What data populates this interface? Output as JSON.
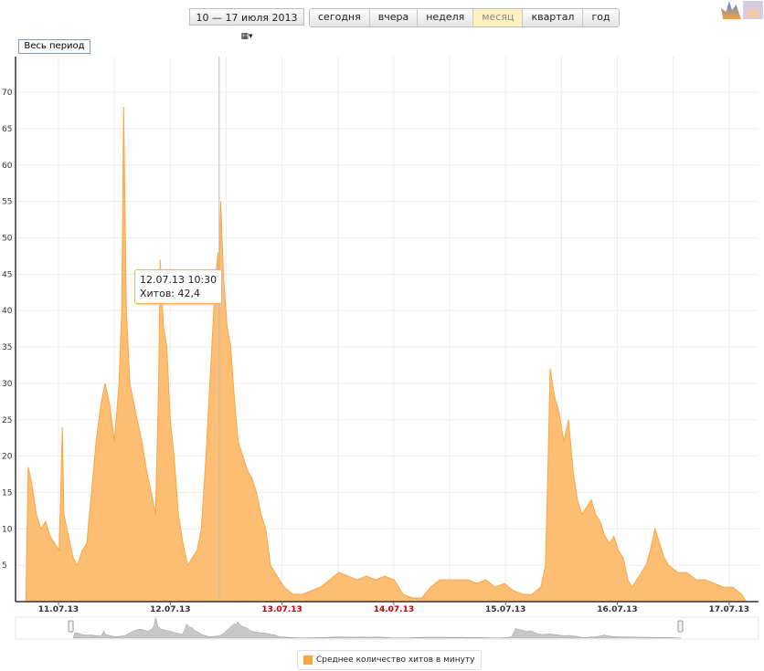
{
  "toolbar": {
    "date_range": "10 — 17 июля 2013",
    "calendar_icon": "calendar-icon",
    "periods": [
      "сегодня",
      "вчера",
      "неделя",
      "месяц",
      "квартал",
      "год"
    ],
    "active_period": "месяц",
    "all_period_label": "Весь период"
  },
  "tooltip": {
    "date": "12.07.13 10:30",
    "label": "Хитов: 42,4"
  },
  "colors": {
    "series": "#f9a640",
    "fill": "#fdbe74",
    "weekend_label": "#c00000",
    "navigator": "#c8c8c8"
  },
  "chart_data": {
    "type": "area",
    "title": "",
    "xlabel": "",
    "ylabel": "",
    "ylim": [
      0,
      74
    ],
    "yticks": [
      5,
      10,
      15,
      20,
      25,
      30,
      35,
      40,
      45,
      50,
      55,
      60,
      65,
      70
    ],
    "xticks": [
      "11.07.13",
      "12.07.13",
      "13.07.13",
      "14.07.13",
      "15.07.13",
      "16.07.13",
      "17.07.13"
    ],
    "weekend_ticks": [
      "13.07.13",
      "14.07.13"
    ],
    "grid": true,
    "legend": "bottom",
    "series": [
      {
        "name": "Среднее количество хитов в минуту",
        "points": [
          [
            "10.07.13 17:00",
            0
          ],
          [
            "10.07.13 17:30",
            18.5
          ],
          [
            "10.07.13 18:20",
            16
          ],
          [
            "10.07.13 19:15",
            12
          ],
          [
            "10.07.13 20:15",
            10
          ],
          [
            "10.07.13 21:15",
            11
          ],
          [
            "10.07.13 22:10",
            9
          ],
          [
            "10.07.13 23:10",
            8
          ],
          [
            "11.07.13 00:10",
            7
          ],
          [
            "11.07.13 00:50",
            24
          ],
          [
            "11.07.13 01:10",
            12
          ],
          [
            "11.07.13 02:10",
            9
          ],
          [
            "11.07.13 03:10",
            6
          ],
          [
            "11.07.13 04:05",
            5
          ],
          [
            "11.07.13 05:05",
            7
          ],
          [
            "11.07.13 06:05",
            8
          ],
          [
            "11.07.13 07:05",
            15
          ],
          [
            "11.07.13 08:05",
            22
          ],
          [
            "11.07.13 09:05",
            27
          ],
          [
            "11.07.13 10:00",
            30
          ],
          [
            "11.07.13 11:00",
            27
          ],
          [
            "11.07.13 12:00",
            22
          ],
          [
            "11.07.13 13:00",
            30
          ],
          [
            "11.07.13 13:35",
            40
          ],
          [
            "11.07.13 14:00",
            68
          ],
          [
            "11.07.13 14:35",
            40
          ],
          [
            "11.07.13 15:20",
            30
          ],
          [
            "11.07.13 16:55",
            25
          ],
          [
            "11.07.13 17:55",
            22
          ],
          [
            "11.07.13 18:55",
            18
          ],
          [
            "11.07.13 19:55",
            15
          ],
          [
            "11.07.13 20:50",
            12
          ],
          [
            "11.07.13 21:30",
            30
          ],
          [
            "11.07.13 21:50",
            47
          ],
          [
            "11.07.13 22:30",
            38
          ],
          [
            "11.07.13 23:15",
            35
          ],
          [
            "12.07.13 00:00",
            25
          ],
          [
            "12.07.13 00:50",
            20
          ],
          [
            "12.07.13 01:45",
            12
          ],
          [
            "12.07.13 02:45",
            8
          ],
          [
            "12.07.13 03:45",
            5
          ],
          [
            "12.07.13 04:45",
            6
          ],
          [
            "12.07.13 05:45",
            7
          ],
          [
            "12.07.13 06:40",
            10
          ],
          [
            "12.07.13 07:40",
            20
          ],
          [
            "12.07.13 08:40",
            32
          ],
          [
            "12.07.13 09:40",
            44
          ],
          [
            "12.07.13 10:15",
            48
          ],
          [
            "12.07.13 10:30",
            42.4
          ],
          [
            "12.07.13 10:50",
            55
          ],
          [
            "12.07.13 11:25",
            45
          ],
          [
            "12.07.13 12:10",
            38
          ],
          [
            "12.07.13 13:00",
            35
          ],
          [
            "12.07.13 13:45",
            28
          ],
          [
            "12.07.13 14:35",
            22
          ],
          [
            "12.07.13 15:35",
            20
          ],
          [
            "12.07.13 16:35",
            18
          ],
          [
            "12.07.13 17:30",
            17
          ],
          [
            "12.07.13 18:30",
            15
          ],
          [
            "12.07.13 19:30",
            12
          ],
          [
            "12.07.13 20:30",
            10
          ],
          [
            "12.07.13 21:30",
            5
          ],
          [
            "12.07.13 22:30",
            4
          ],
          [
            "13.07.13 00:25",
            2
          ],
          [
            "13.07.13 02:25",
            1
          ],
          [
            "13.07.13 04:20",
            1
          ],
          [
            "13.07.13 06:20",
            1.5
          ],
          [
            "13.07.13 08:15",
            2
          ],
          [
            "13.07.13 10:15",
            3
          ],
          [
            "13.07.13 12:15",
            4
          ],
          [
            "13.07.13 14:10",
            3.5
          ],
          [
            "13.07.13 16:10",
            3
          ],
          [
            "13.07.13 18:10",
            3.5
          ],
          [
            "13.07.13 20:05",
            3
          ],
          [
            "13.07.13 22:05",
            3.5
          ],
          [
            "14.07.13 00:05",
            3
          ],
          [
            "14.07.13 02:00",
            1
          ],
          [
            "14.07.13 04:00",
            0.5
          ],
          [
            "14.07.13 06:00",
            0.5
          ],
          [
            "14.07.13 07:55",
            2
          ],
          [
            "14.07.13 09:55",
            3
          ],
          [
            "14.07.13 11:55",
            3
          ],
          [
            "14.07.13 13:50",
            3
          ],
          [
            "14.07.13 15:50",
            3
          ],
          [
            "14.07.13 17:50",
            2.5
          ],
          [
            "14.07.13 19:45",
            3
          ],
          [
            "14.07.13 21:45",
            2
          ],
          [
            "14.07.13 23:45",
            2.5
          ],
          [
            "15.07.13 01:40",
            1.5
          ],
          [
            "15.07.13 03:40",
            1
          ],
          [
            "15.07.13 05:40",
            1
          ],
          [
            "15.07.13 07:35",
            2
          ],
          [
            "15.07.13 08:35",
            5
          ],
          [
            "15.07.13 09:10",
            20
          ],
          [
            "15.07.13 09:35",
            32
          ],
          [
            "15.07.13 10:35",
            28
          ],
          [
            "15.07.13 11:30",
            26
          ],
          [
            "15.07.13 12:30",
            22
          ],
          [
            "15.07.13 13:30",
            25
          ],
          [
            "15.07.13 14:30",
            18
          ],
          [
            "15.07.13 15:25",
            14
          ],
          [
            "15.07.13 16:25",
            12
          ],
          [
            "15.07.13 17:25",
            13
          ],
          [
            "15.07.13 18:25",
            14
          ],
          [
            "15.07.13 19:20",
            12
          ],
          [
            "15.07.13 20:20",
            11
          ],
          [
            "15.07.13 21:20",
            9
          ],
          [
            "15.07.13 22:20",
            8
          ],
          [
            "15.07.13 23:15",
            9
          ],
          [
            "16.07.13 00:15",
            7
          ],
          [
            "16.07.13 01:15",
            6
          ],
          [
            "16.07.13 02:15",
            3
          ],
          [
            "16.07.13 03:10",
            2
          ],
          [
            "16.07.13 04:10",
            3
          ],
          [
            "16.07.13 05:10",
            4
          ],
          [
            "16.07.13 06:10",
            5
          ],
          [
            "16.07.13 07:05",
            7
          ],
          [
            "16.07.13 08:05",
            10
          ],
          [
            "16.07.13 09:05",
            8
          ],
          [
            "16.07.13 10:05",
            6
          ],
          [
            "16.07.13 11:00",
            5
          ],
          [
            "16.07.13 13:00",
            4
          ],
          [
            "16.07.13 14:55",
            4
          ],
          [
            "16.07.13 16:55",
            3
          ],
          [
            "16.07.13 18:50",
            3
          ],
          [
            "16.07.13 20:50",
            2.5
          ],
          [
            "16.07.13 22:45",
            2
          ],
          [
            "17.07.13 00:45",
            2
          ],
          [
            "17.07.13 02:40",
            1
          ],
          [
            "17.07.13 03:40",
            0
          ]
        ]
      }
    ]
  }
}
